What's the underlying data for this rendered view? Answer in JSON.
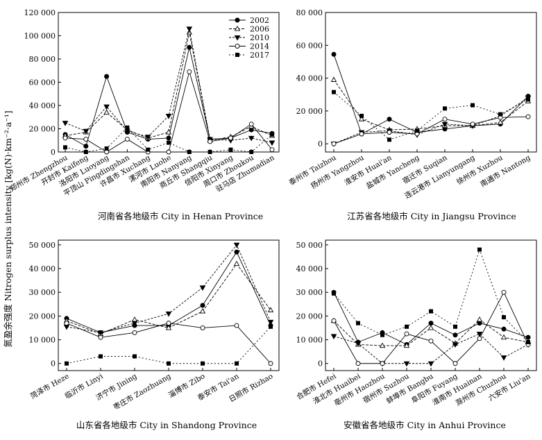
{
  "figure": {
    "ylabel": "氮盈余强度 Nitrogen surplus intensity [kg(N)·km⁻²·a⁻¹]",
    "legend": [
      "2002",
      "2006",
      "2010",
      "2014",
      "2017"
    ]
  },
  "chart_data": [
    {
      "type": "line",
      "title": "河南省各地级市 City in Henan Province",
      "ylim": [
        0,
        120000
      ],
      "yticks": [
        "0",
        "20 000",
        "40 000",
        "60 000",
        "80 000",
        "100 000",
        "120 000"
      ],
      "categories": [
        "郑州市 Zhengzhou",
        "开封市 Kaifeng",
        "洛阳市 Luoyang",
        "平顶山 Pingdingshan",
        "许昌市 Xuchang",
        "漯河市 Luohe",
        "南阳市 Nanyang",
        "商丘市 Shangqiu",
        "信阳市 Xinyang",
        "周口市 Zhoukou",
        "驻马店 Zhumadian"
      ],
      "series": [
        {
          "name": "2002",
          "values": [
            15000,
            5000,
            65000,
            17000,
            11000,
            12000,
            90000,
            11000,
            12000,
            19000,
            16000
          ]
        },
        {
          "name": "2006",
          "values": [
            14000,
            17000,
            34000,
            19000,
            12000,
            17000,
            103000,
            10000,
            13000,
            22000,
            14000
          ]
        },
        {
          "name": "2010",
          "values": [
            25000,
            18000,
            39000,
            18000,
            13000,
            31000,
            106000,
            11000,
            10000,
            12000,
            8000
          ]
        },
        {
          "name": "2014",
          "values": [
            12000,
            11000,
            0,
            11000,
            0,
            0,
            69000,
            9000,
            12000,
            24000,
            2000
          ]
        },
        {
          "name": "2017",
          "values": [
            4000,
            0,
            3000,
            21000,
            2000,
            8000,
            0,
            0,
            2000,
            0,
            15000
          ]
        }
      ]
    },
    {
      "type": "line",
      "title": "江苏省各地级市 City in Jiangsu Province",
      "ylim": [
        -5000,
        80000
      ],
      "yticks": [
        "0",
        "20 000",
        "40 000",
        "60 000",
        "80 000"
      ],
      "categories": [
        "泰州市 Taizhou",
        "扬州市 Yangzhou",
        "淮安市 Huai'an",
        "盐城市 Yancheng",
        "宿迁市 Suqian",
        "连云港市 Lianyungang",
        "徐州市 Xuzhou",
        "南通市 Nantong"
      ],
      "series": [
        {
          "name": "2002",
          "values": [
            54500,
            6000,
            15000,
            7000,
            9000,
            11000,
            12000,
            29000
          ]
        },
        {
          "name": "2006",
          "values": [
            39000,
            15000,
            8500,
            9000,
            11000,
            11000,
            13000,
            26000
          ]
        },
        {
          "name": "2010",
          "values": [
            0,
            7000,
            8000,
            5500,
            12000,
            11000,
            17000,
            28000
          ]
        },
        {
          "name": "2014",
          "values": [
            0,
            6000,
            7000,
            6000,
            15000,
            12000,
            16000,
            16500
          ]
        },
        {
          "name": "2017",
          "values": [
            31500,
            17000,
            2500,
            8000,
            21500,
            23500,
            18000,
            27000
          ]
        }
      ]
    },
    {
      "type": "line",
      "title": "山东省各地级市 City in Shandong Province",
      "ylim": [
        -3000,
        52000
      ],
      "yticks": [
        "0",
        "10 000",
        "20 000",
        "30 000",
        "40 000",
        "50 000"
      ],
      "categories": [
        "菏泽市 Heze",
        "临沂市 Linyi",
        "济宁市 Jining",
        "枣庄市 Zaozhuang",
        "淄博市 Zibo",
        "泰安市 Tai'an",
        "日照市 Rizhao"
      ],
      "series": [
        {
          "name": "2002",
          "values": [
            19000,
            13000,
            16000,
            16000,
            24500,
            47000,
            16000
          ]
        },
        {
          "name": "2006",
          "values": [
            18000,
            12500,
            18500,
            15000,
            22000,
            42000,
            22500
          ]
        },
        {
          "name": "2010",
          "values": [
            15500,
            13000,
            17000,
            21000,
            32000,
            50000,
            17500
          ]
        },
        {
          "name": "2014",
          "values": [
            17000,
            11000,
            13000,
            17000,
            15000,
            16000,
            0
          ]
        },
        {
          "name": "2017",
          "values": [
            0,
            3000,
            3000,
            0,
            0,
            0,
            15500
          ]
        }
      ]
    },
    {
      "type": "line",
      "title": "安徽省各地级市 City in Anhui Province",
      "ylim": [
        -3000,
        52000
      ],
      "yticks": [
        "0",
        "10 000",
        "20 000",
        "30 000",
        "40 000",
        "50 000"
      ],
      "categories": [
        "合肥市 Hefei",
        "淮北市 Huaibei",
        "亳州市 Haozhou",
        "宿州市 Suzhou",
        "蚌埠市 Bangbu",
        "阜阳市 Fuyang",
        "淮南市 Huainan",
        "滁州市 Chuzhou",
        "六安市 Liu'an"
      ],
      "series": [
        {
          "name": "2002",
          "values": [
            30000,
            9000,
            13000,
            8000,
            17000,
            12000,
            17000,
            14500,
            11000
          ]
        },
        {
          "name": "2006",
          "values": [
            18000,
            8000,
            7500,
            7500,
            15000,
            8500,
            18500,
            11000,
            9000
          ]
        },
        {
          "name": "2010",
          "values": [
            11500,
            8500,
            0,
            0,
            0,
            8000,
            12500,
            2500,
            8000
          ]
        },
        {
          "name": "2014",
          "values": [
            18000,
            0,
            0,
            12500,
            9500,
            0,
            10500,
            30000,
            8000
          ]
        },
        {
          "name": "2017",
          "values": [
            29500,
            17000,
            12000,
            15500,
            22000,
            15500,
            48000,
            19500,
            9000
          ]
        }
      ]
    }
  ]
}
